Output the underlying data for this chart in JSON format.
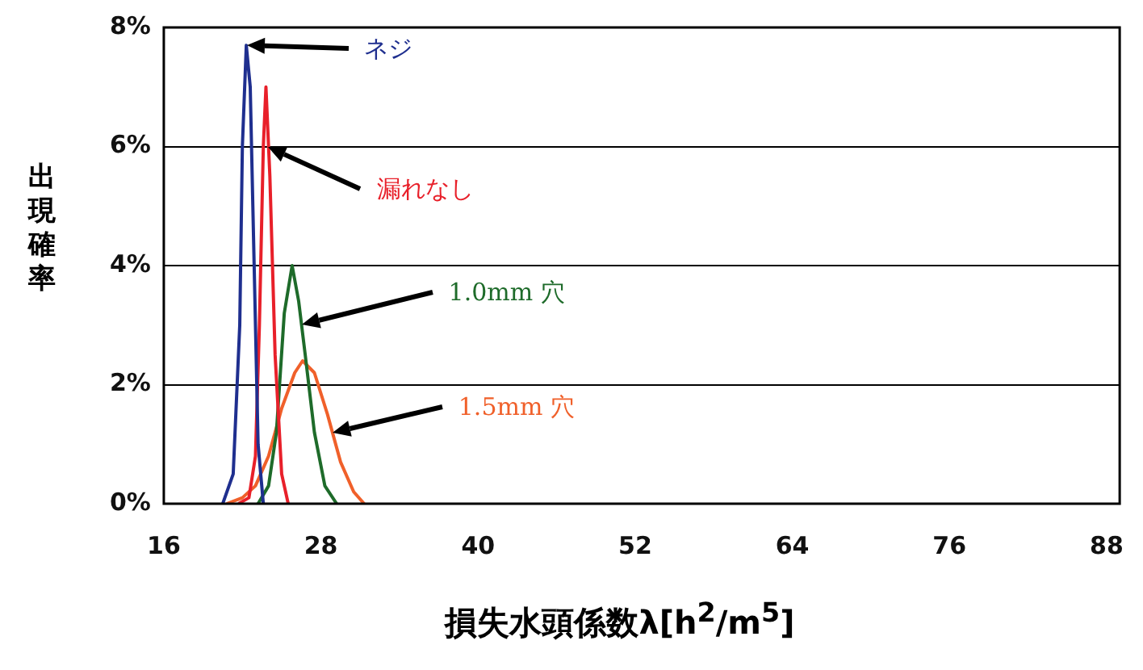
{
  "chart_data": {
    "type": "line",
    "xlabel": "損失水頭係数λ[h$^{2}$/m$^{5}$]",
    "ylabel": "出現確率",
    "xlim": [
      16,
      89
    ],
    "xticks": [
      16,
      28,
      40,
      52,
      64,
      76,
      88
    ],
    "ylim": [
      0,
      8
    ],
    "yticks": [
      {
        "value": 0,
        "label": "0%"
      },
      {
        "value": 2,
        "label": "2%"
      },
      {
        "value": 4,
        "label": "4%"
      },
      {
        "value": 6,
        "label": "6%"
      },
      {
        "value": 8,
        "label": "8%"
      }
    ],
    "grid": "y",
    "legend": false,
    "marker": "none",
    "line_style": "solid",
    "series": [
      {
        "name": "ネジ",
        "color": "#1f2f8f",
        "x": [
          20.5,
          21.3,
          21.8,
          22.0,
          22.3,
          22.6,
          22.9,
          23.2,
          23.6
        ],
        "values": [
          0,
          0.5,
          3,
          6,
          7.7,
          7.0,
          4,
          1,
          0
        ]
      },
      {
        "name": "漏れなし",
        "color": "#e8202a",
        "x": [
          21.7,
          22.5,
          23.0,
          23.3,
          23.6,
          23.8,
          24.1,
          24.5,
          25.0,
          25.5
        ],
        "values": [
          0,
          0.1,
          0.8,
          3,
          6,
          7.0,
          5.5,
          2.5,
          0.5,
          0
        ]
      },
      {
        "name": "1.0mm 穴",
        "color": "#1e6b2a",
        "x": [
          23.2,
          24,
          24.6,
          25.2,
          25.8,
          26.3,
          26.8,
          27.5,
          28.3,
          29.2
        ],
        "values": [
          0,
          0.3,
          1.2,
          3.2,
          4.0,
          3.4,
          2.5,
          1.2,
          0.3,
          0
        ]
      },
      {
        "name": "1.5mm 穴",
        "color": "#f0602a",
        "x": [
          20.8,
          22,
          23,
          24,
          25,
          26,
          26.6,
          27.5,
          28.5,
          29.5,
          30.5,
          31.3
        ],
        "values": [
          0,
          0.1,
          0.3,
          0.8,
          1.6,
          2.2,
          2.4,
          2.2,
          1.5,
          0.7,
          0.2,
          0
        ]
      }
    ]
  }
}
